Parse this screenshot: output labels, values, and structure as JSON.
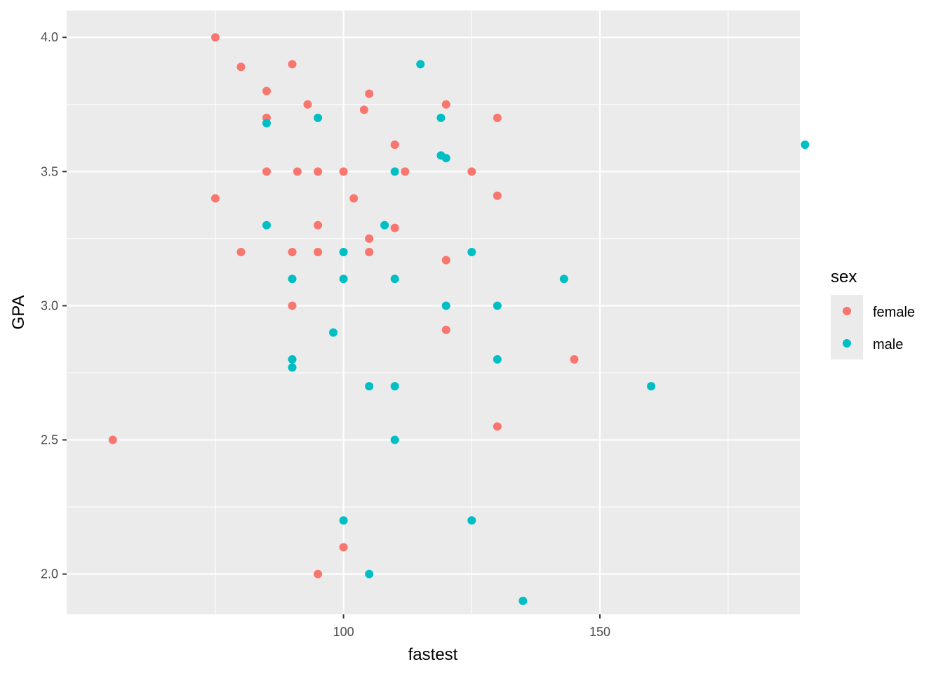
{
  "chart_data": {
    "type": "scatter",
    "title": "",
    "xlabel": "fastest",
    "ylabel": "GPA",
    "xlim": [
      46,
      189
    ],
    "ylim": [
      1.85,
      4.1
    ],
    "x_ticks": [
      100,
      150
    ],
    "x_tick_labels": [
      "100",
      "150"
    ],
    "x_minor_ticks": [
      75,
      125,
      175
    ],
    "y_ticks": [
      2.0,
      2.5,
      3.0,
      3.5,
      4.0
    ],
    "y_tick_labels": [
      "2.0",
      "2.5",
      "3.0",
      "3.5",
      "4.0"
    ],
    "y_minor_ticks": [
      2.25,
      2.75,
      3.25,
      3.75
    ],
    "grid": true,
    "panel_background": "#ebebeb",
    "grid_color": "#ffffff",
    "legend": {
      "title": "sex",
      "position": "right"
    },
    "series": [
      {
        "name": "female",
        "color": "#f8766d",
        "points": [
          [
            75,
            4.0
          ],
          [
            80,
            3.89
          ],
          [
            90,
            3.9
          ],
          [
            85,
            3.8
          ],
          [
            93,
            3.75
          ],
          [
            105,
            3.79
          ],
          [
            104,
            3.73
          ],
          [
            120,
            3.75
          ],
          [
            85,
            3.7
          ],
          [
            130,
            3.7
          ],
          [
            110,
            3.6
          ],
          [
            85,
            3.5
          ],
          [
            91,
            3.5
          ],
          [
            95,
            3.5
          ],
          [
            100,
            3.5
          ],
          [
            112,
            3.5
          ],
          [
            125,
            3.5
          ],
          [
            75,
            3.4
          ],
          [
            102,
            3.4
          ],
          [
            130,
            3.41
          ],
          [
            95,
            3.3
          ],
          [
            110,
            3.29
          ],
          [
            105,
            3.25
          ],
          [
            80,
            3.2
          ],
          [
            90,
            3.2
          ],
          [
            95,
            3.2
          ],
          [
            105,
            3.2
          ],
          [
            120,
            3.17
          ],
          [
            90,
            3.0
          ],
          [
            120,
            2.91
          ],
          [
            145,
            2.8
          ],
          [
            130,
            2.55
          ],
          [
            55,
            2.5
          ],
          [
            100,
            2.1
          ],
          [
            95,
            2.0
          ]
        ]
      },
      {
        "name": "male",
        "color": "#00bfc4",
        "points": [
          [
            115,
            3.9
          ],
          [
            95,
            3.7
          ],
          [
            119,
            3.7
          ],
          [
            85,
            3.68
          ],
          [
            119,
            3.56
          ],
          [
            120,
            3.55
          ],
          [
            110,
            3.5
          ],
          [
            190,
            3.6
          ],
          [
            85,
            3.3
          ],
          [
            108,
            3.3
          ],
          [
            100,
            3.2
          ],
          [
            125,
            3.2
          ],
          [
            90,
            3.1
          ],
          [
            100,
            3.1
          ],
          [
            110,
            3.1
          ],
          [
            143,
            3.1
          ],
          [
            120,
            3.0
          ],
          [
            130,
            3.0
          ],
          [
            98,
            2.9
          ],
          [
            90,
            2.8
          ],
          [
            130,
            2.8
          ],
          [
            90,
            2.77
          ],
          [
            105,
            2.7
          ],
          [
            110,
            2.7
          ],
          [
            160,
            2.7
          ],
          [
            110,
            2.5
          ],
          [
            100,
            2.2
          ],
          [
            125,
            2.2
          ],
          [
            105,
            2.0
          ],
          [
            135,
            1.9
          ]
        ]
      }
    ]
  }
}
